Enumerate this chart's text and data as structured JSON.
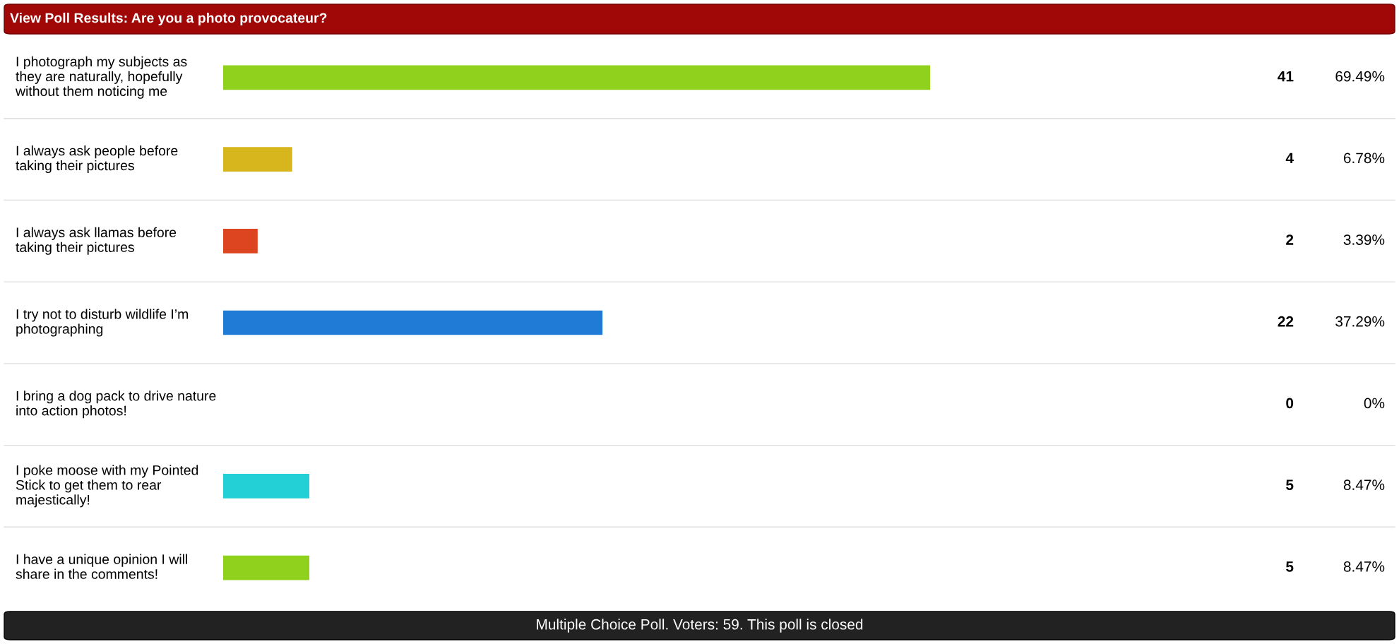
{
  "chart_data": {
    "type": "bar",
    "orientation": "horizontal",
    "title": "View Poll Results: Are you a photo provocateur?",
    "categories": [
      "I photograph my subjects as they are naturally, hopefully without them noticing me",
      "I always ask people before taking their pictures",
      "I always ask llamas before taking their pictures",
      "I try not to disturb wildlife I’m photographing",
      "I bring a dog pack to drive nature into action photos!",
      "I poke moose with my Pointed Stick to get them to rear majestically!",
      "I have a unique opinion I will share in the comments!"
    ],
    "values": [
      69.49,
      6.78,
      3.39,
      37.29,
      0,
      8.47,
      8.47
    ],
    "colors": [
      "#8fd11d",
      "#d6b51d",
      "#dd4420",
      "#1f7bd6",
      "#1f7bd6",
      "#22d0d6",
      "#8fd11d"
    ],
    "value_labels": [
      "69.49%",
      "6.78%",
      "3.39%",
      "37.29%",
      "0%",
      "8.47%",
      "8.47%"
    ],
    "annotations": [
      "41",
      "4",
      "2",
      "22",
      "0",
      "5",
      "5",
      "Multiple Choice Poll. Voters: 59. This poll is closed"
    ]
  }
}
